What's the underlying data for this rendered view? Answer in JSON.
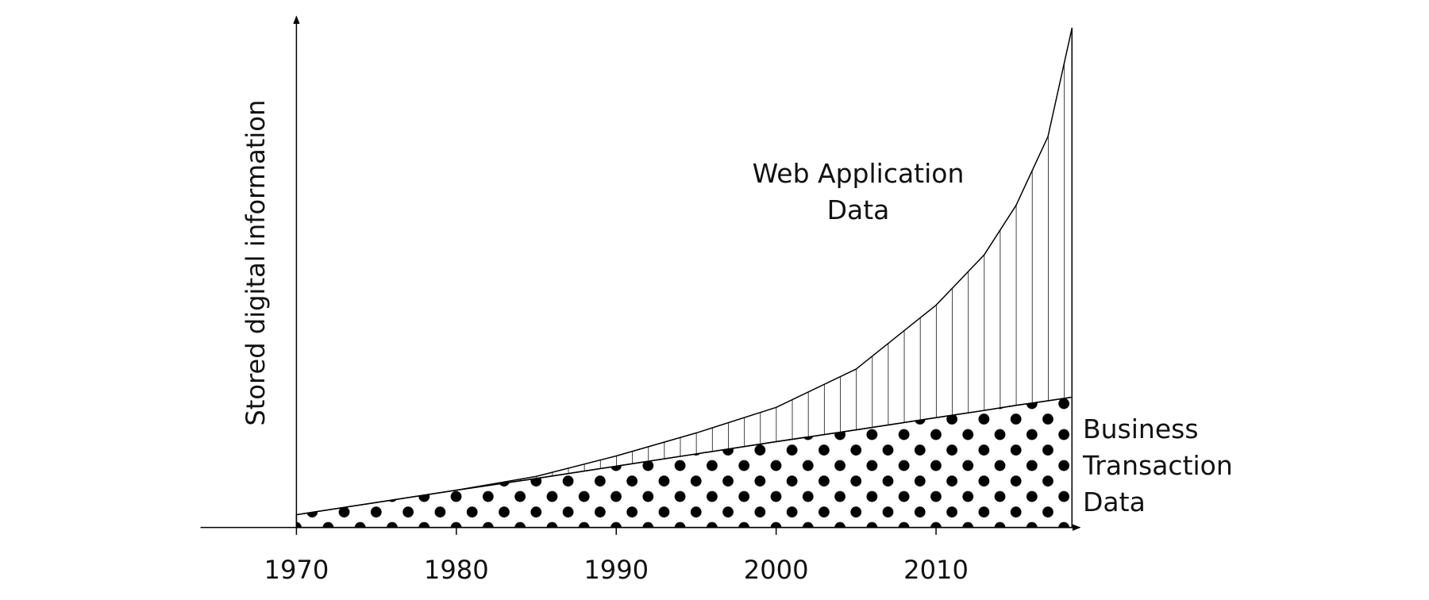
{
  "chart_data": {
    "type": "stacked-area",
    "x": [
      1970,
      1975,
      1980,
      1985,
      1990,
      1995,
      2000,
      2005,
      2010,
      2013,
      2015,
      2017,
      2018.5
    ],
    "xlim": [
      1964,
      2019
    ],
    "xticks": [
      1970,
      1980,
      1990,
      2000,
      2010
    ],
    "ylim": [
      0,
      100
    ],
    "y_label": "Stored digital information",
    "series": [
      {
        "name": "Business Transaction Data",
        "pattern": "dots",
        "color": "#000000",
        "values": [
          2.5,
          4.9,
          7.3,
          9.6,
          12,
          14.4,
          16.8,
          19.1,
          21.5,
          22.9,
          23.9,
          24.8,
          25.5
        ]
      },
      {
        "name": "Web Application Data",
        "pattern": "vertical-lines",
        "color": "#000000",
        "values": [
          0,
          0,
          0,
          0.4,
          2,
          4.1,
          6.7,
          11.9,
          22,
          30.4,
          39.1,
          51.7,
          72.2
        ]
      }
    ]
  }
}
